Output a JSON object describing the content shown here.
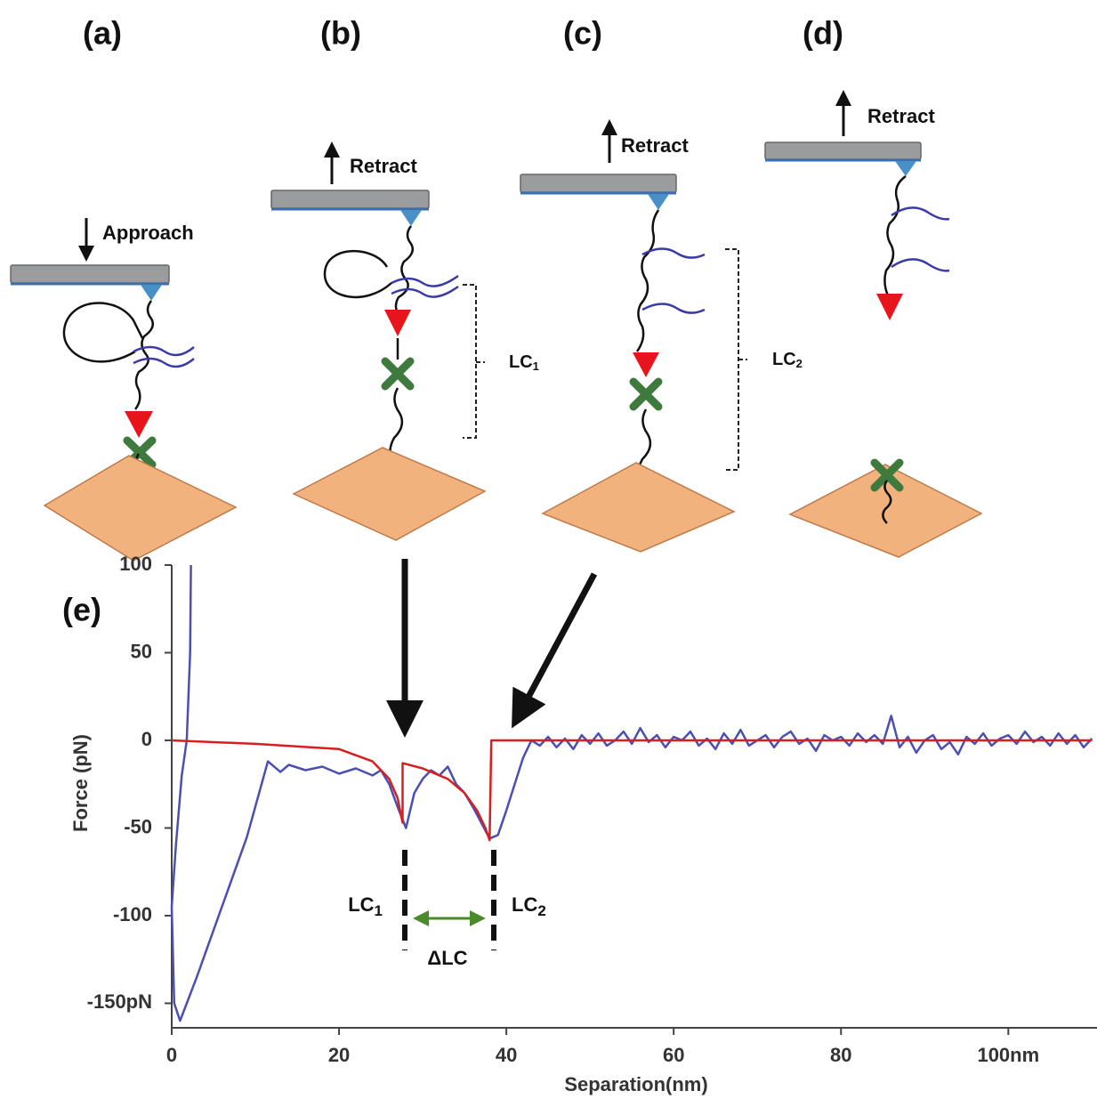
{
  "panels": [
    {
      "label": "(a)",
      "action": "Approach"
    },
    {
      "label": "(b)",
      "action": "Retract",
      "contour": {
        "base": "LC",
        "sub": "1"
      }
    },
    {
      "label": "(c)",
      "action": "Retract",
      "contour": {
        "base": "LC",
        "sub": "2"
      }
    },
    {
      "label": "(d)",
      "action": "Retract"
    }
  ],
  "chart_data": {
    "type": "line",
    "panel_label": "(e)",
    "x_label": "Separation(nm)",
    "y_label": "Force (pN)",
    "xlim": [
      0,
      110.6
    ],
    "ylim": [
      -164,
      100
    ],
    "xticks": [
      0,
      20,
      40,
      60,
      80,
      {
        "value": 100,
        "label": "100nm"
      }
    ],
    "yticks": [
      100,
      50,
      0,
      -50,
      -100,
      {
        "value": -150,
        "label": "-150pN"
      }
    ],
    "annotations": {
      "lc1": {
        "base": "LC",
        "sub": "1"
      },
      "lc2": {
        "base": "LC",
        "sub": "2"
      },
      "delta": "ΔLC"
    },
    "series": [
      {
        "color": "#4b4fb2",
        "x": [
          2.3,
          2.2,
          1.8,
          1.2,
          0.5,
          0,
          0.3,
          1,
          3,
          6,
          9,
          11.5,
          13,
          14,
          16,
          18,
          20,
          22,
          24,
          25,
          26,
          27,
          28,
          29,
          30,
          31,
          32,
          33,
          34,
          35,
          36,
          37,
          38,
          39,
          40,
          41,
          42,
          43,
          44,
          45,
          46,
          47,
          48,
          49,
          50,
          51,
          52,
          53,
          54,
          55,
          56,
          57,
          58,
          59,
          60,
          61,
          62,
          63,
          64,
          65,
          66,
          67,
          68,
          69,
          70,
          71,
          72,
          73,
          74,
          75,
          76,
          77,
          78,
          79,
          80,
          81,
          82,
          83,
          84,
          85,
          86,
          87,
          88,
          89,
          90,
          91,
          92,
          93,
          94,
          95,
          96,
          97,
          98,
          99,
          100,
          101,
          102,
          103,
          104,
          105,
          106,
          107,
          108,
          109,
          110
        ],
        "values": [
          100,
          50,
          0,
          -20,
          -60,
          -95,
          -150,
          -160,
          -135,
          -95,
          -55,
          -12,
          -18,
          -14,
          -17,
          -15,
          -19,
          -16,
          -20,
          -17,
          -25,
          -38,
          -50,
          -30,
          -22,
          -17,
          -20,
          -15,
          -25,
          -30,
          -38,
          -47,
          -56,
          -54,
          -40,
          -25,
          -10,
          0,
          -3,
          2,
          -4,
          1,
          -5,
          3,
          -2,
          4,
          -3,
          0,
          5,
          -2,
          7,
          -1,
          3,
          -4,
          2,
          0,
          5,
          -3,
          1,
          -5,
          4,
          -2,
          6,
          -3,
          0,
          3,
          -4,
          2,
          5,
          -2,
          1,
          -6,
          3,
          0,
          2,
          -3,
          4,
          -1,
          3,
          -2,
          14,
          -4,
          2,
          -7,
          0,
          3,
          -5,
          -1,
          -8,
          2,
          -2,
          4,
          -3,
          1,
          3,
          -2,
          5,
          -1,
          2,
          -3,
          4,
          -2,
          3,
          -4,
          1
        ]
      },
      {
        "color": "#d42020",
        "x": [
          0,
          10,
          20,
          24,
          26,
          27,
          27.6,
          27.6,
          30,
          33,
          35,
          36.5,
          37.5,
          38,
          38.2,
          110
        ],
        "values": [
          0,
          -2,
          -5,
          -12,
          -22,
          -33,
          -47,
          -13,
          -16,
          -22,
          -30,
          -40,
          -50,
          -57,
          0,
          0
        ]
      }
    ]
  }
}
